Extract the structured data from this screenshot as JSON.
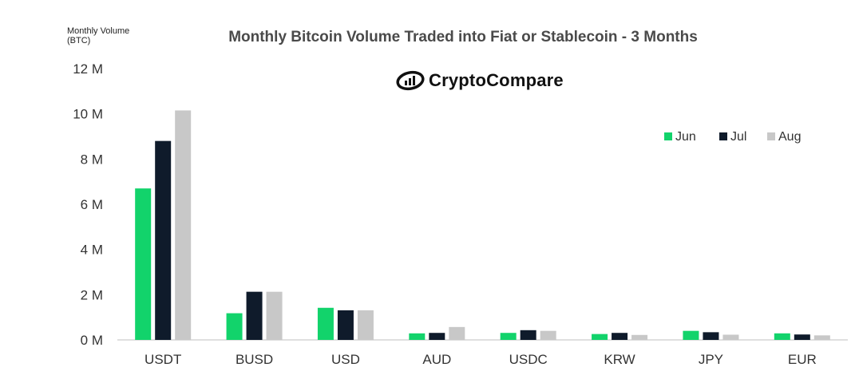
{
  "chart_data": {
    "type": "bar",
    "title": "Monthly Bitcoin Volume Traded into Fiat or Stablecoin - 3 Months",
    "ylabel": "Monthly Volume (BTC)",
    "xlabel": "",
    "ylim": [
      0,
      12000000
    ],
    "yticks": [
      0,
      2000000,
      4000000,
      6000000,
      8000000,
      10000000,
      12000000
    ],
    "ytick_labels": [
      "0 M",
      "2 M",
      "4 M",
      "6 M",
      "8 M",
      "10 M",
      "12 M"
    ],
    "categories": [
      "USDT",
      "BUSD",
      "USD",
      "AUD",
      "USDC",
      "KRW",
      "JPY",
      "EUR"
    ],
    "series": [
      {
        "name": "Jun",
        "color": "#12d36b",
        "values": [
          6700000,
          1180000,
          1420000,
          290000,
          310000,
          260000,
          400000,
          290000
        ]
      },
      {
        "name": "Jul",
        "color": "#0f1b2b",
        "values": [
          8800000,
          2130000,
          1310000,
          310000,
          430000,
          310000,
          340000,
          240000
        ]
      },
      {
        "name": "Aug",
        "color": "#c8c8c8",
        "values": [
          10150000,
          2130000,
          1310000,
          570000,
          400000,
          220000,
          230000,
          200000
        ]
      }
    ],
    "legend_position": "top-right",
    "grid": false
  },
  "logo": {
    "text": "CryptoCompare"
  }
}
